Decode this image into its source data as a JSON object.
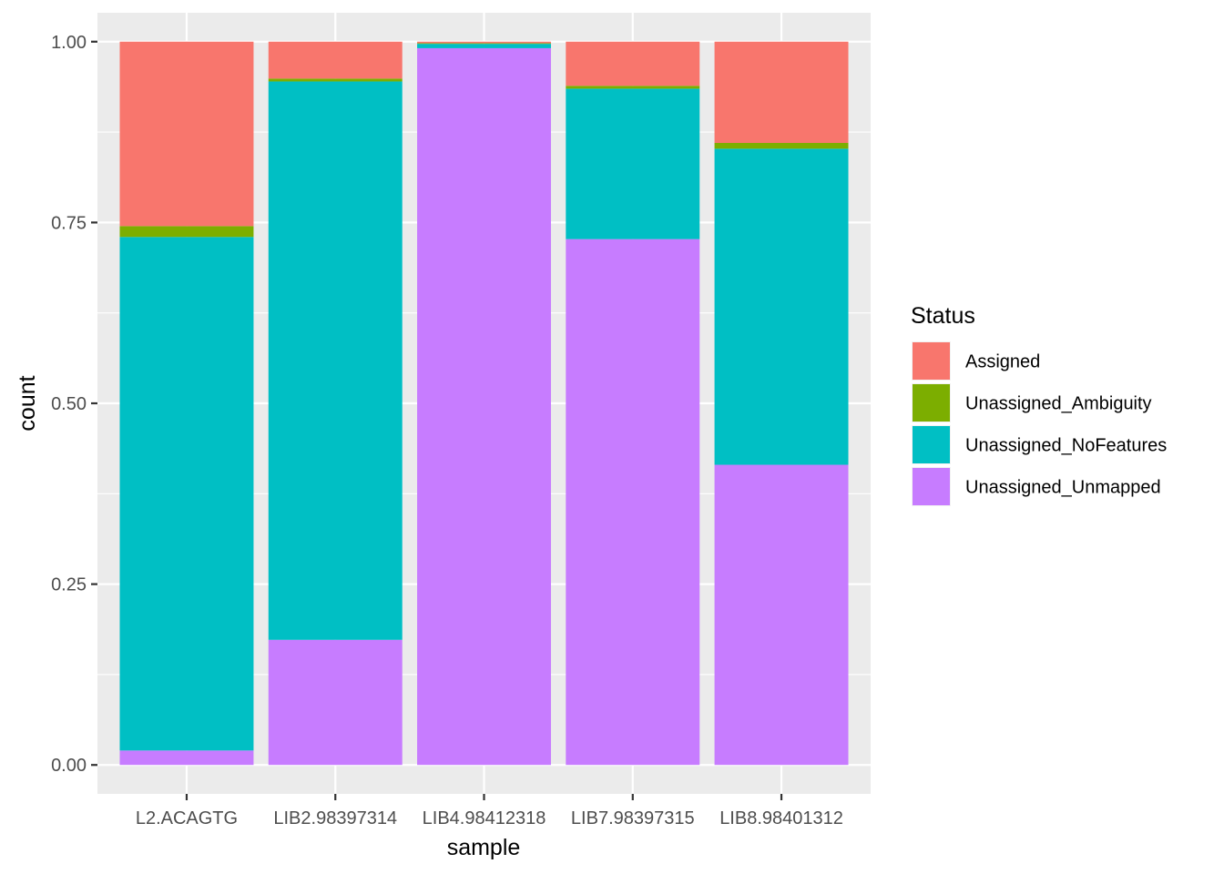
{
  "chart_data": {
    "type": "bar",
    "stacked": true,
    "categories": [
      "L2.ACAGTG",
      "LIB2.98397314",
      "LIB4.98412318",
      "LIB7.98397315",
      "LIB8.98401312"
    ],
    "series": [
      {
        "name": "Unassigned_Unmapped",
        "color": "#C77CFF",
        "values": [
          0.02,
          0.173,
          0.991,
          0.727,
          0.415
        ]
      },
      {
        "name": "Unassigned_NoFeatures",
        "color": "#00BFC4",
        "values": [
          0.71,
          0.772,
          0.006,
          0.208,
          0.437
        ]
      },
      {
        "name": "Unassigned_Ambiguity",
        "color": "#7CAE00",
        "values": [
          0.015,
          0.004,
          0.001,
          0.004,
          0.008
        ]
      },
      {
        "name": "Assigned",
        "color": "#F8766D",
        "values": [
          0.255,
          0.051,
          0.002,
          0.061,
          0.14
        ]
      }
    ],
    "xlabel": "sample",
    "ylabel": "count",
    "ylim": [
      -0.04,
      1.04
    ],
    "yticks": [
      "0.00",
      "0.25",
      "0.50",
      "0.75",
      "1.00"
    ],
    "legend": {
      "title": "Status",
      "position": "right",
      "entries": [
        "Assigned",
        "Unassigned_Ambiguity",
        "Unassigned_NoFeatures",
        "Unassigned_Unmapped"
      ]
    },
    "grid": true
  }
}
